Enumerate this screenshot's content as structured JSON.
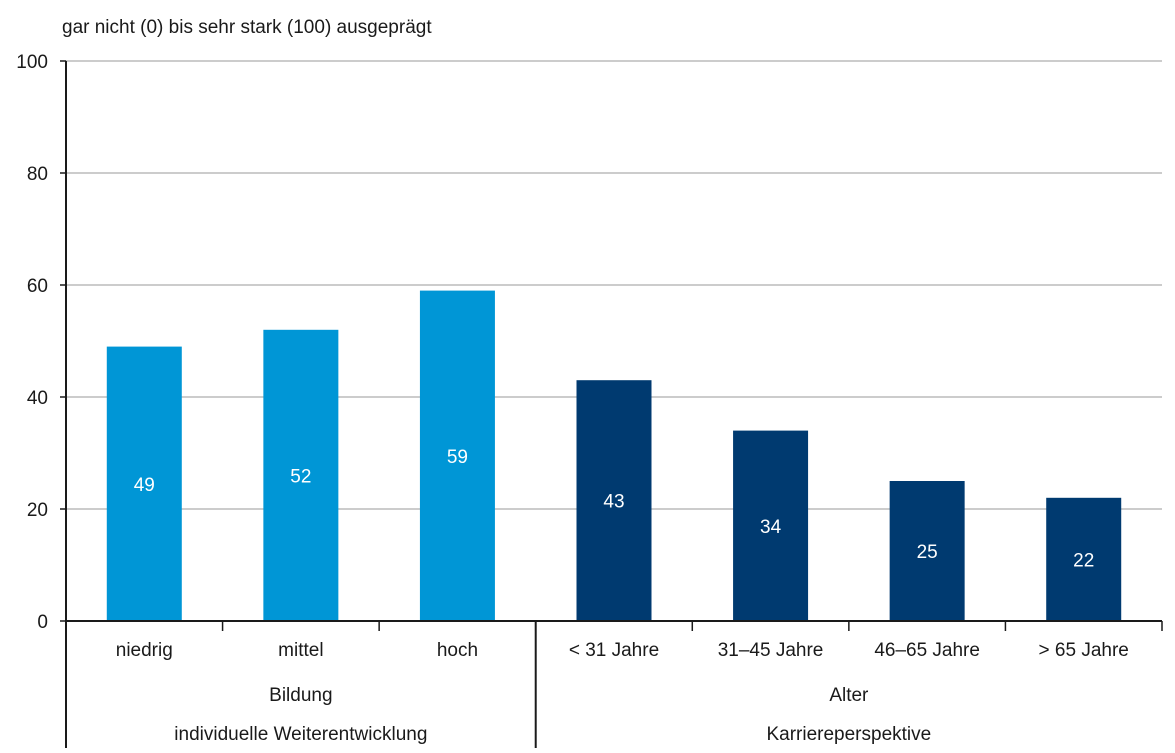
{
  "chart_data": {
    "type": "bar",
    "ylabel": "gar nicht (0) bis sehr stark (100) ausgeprägt",
    "ylim": [
      0,
      100
    ],
    "yticks": [
      0,
      20,
      40,
      60,
      80,
      100
    ],
    "grid": true,
    "categories": [
      "niedrig",
      "mittel",
      "hoch",
      "< 31 Jahre",
      "31–45 Jahre",
      "46–65 Jahre",
      "> 65 Jahre"
    ],
    "values": [
      49,
      52,
      59,
      43,
      34,
      25,
      22
    ],
    "value_labels": [
      "49",
      "52",
      "59",
      "43",
      "34",
      "25",
      "22"
    ],
    "colors": [
      "#0096d6",
      "#0096d6",
      "#0096d6",
      "#003a70",
      "#003a70",
      "#003a70",
      "#003a70"
    ],
    "groups": [
      {
        "label_line1": "Bildung",
        "label_line2": "individuelle Weiterentwicklung",
        "categories": [
          0,
          1,
          2
        ],
        "color": "#0096d6"
      },
      {
        "label_line1": "Alter",
        "label_line2": "Karriereperspektive",
        "categories": [
          3,
          4,
          5,
          6
        ],
        "color": "#003a70"
      }
    ]
  }
}
